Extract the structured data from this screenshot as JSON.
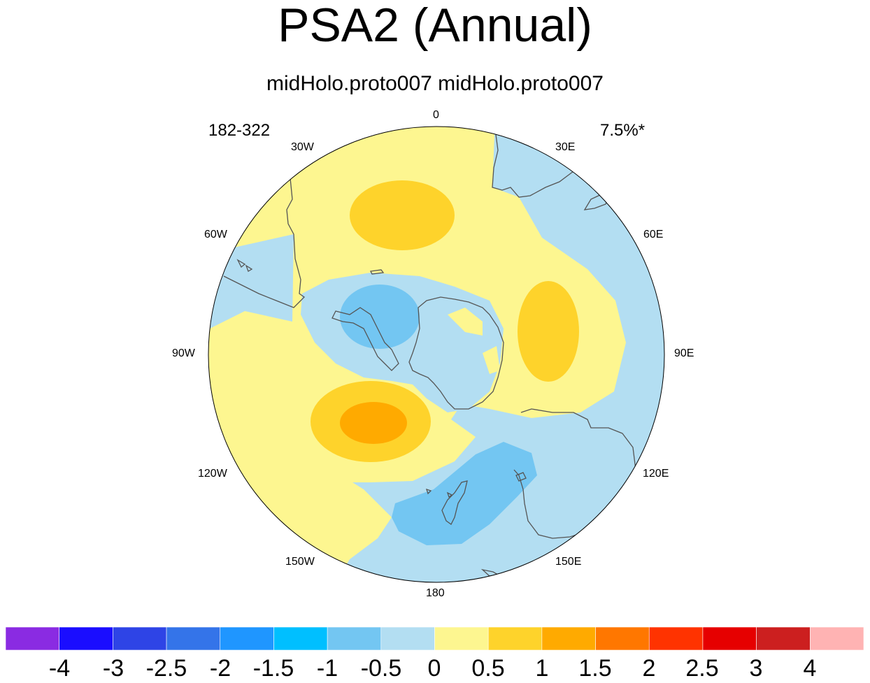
{
  "title": "PSA2 (Annual)",
  "subtitle": "midHolo.proto007  midHolo.proto007",
  "period": "182-322",
  "variance": "7.5%*",
  "longitude_labels": [
    "0",
    "30E",
    "60E",
    "90E",
    "120E",
    "150E",
    "180",
    "150W",
    "120W",
    "90W",
    "60W",
    "30W"
  ],
  "colorbar": {
    "levels": [
      "-4",
      "-3",
      "-2.5",
      "-2",
      "-1.5",
      "-1",
      "-0.5",
      "0",
      "0.5",
      "1",
      "1.5",
      "2",
      "2.5",
      "3",
      "4"
    ],
    "colors": [
      "#8a2be2",
      "#1a0dff",
      "#2e44e6",
      "#3474e9",
      "#1f96ff",
      "#00bfff",
      "#73c6f2",
      "#b3def2",
      "#fdf690",
      "#fed32b",
      "#ffaa00",
      "#ff7700",
      "#ff3300",
      "#e60000",
      "#cc1f1f",
      "#ffb3b3"
    ]
  },
  "field_colors": {
    "neg_0_5": "#b3def2",
    "neg_1": "#73c6f2",
    "pos_0": "#fdf690",
    "pos_0_5": "#fed32b",
    "pos_1": "#ffaa00",
    "coast": "#555555"
  }
}
